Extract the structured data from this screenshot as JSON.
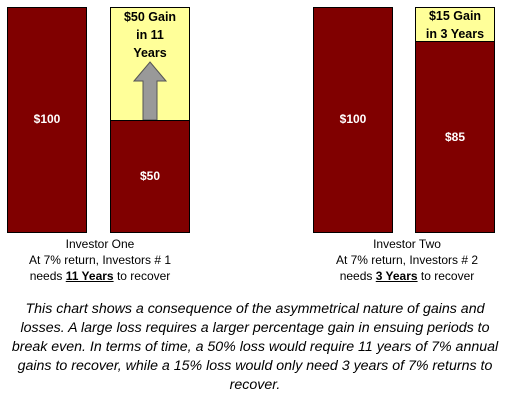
{
  "chart_data": {
    "type": "bar",
    "colors": {
      "loss_bar": "#800000",
      "gain_box": "#ffff99",
      "arrow": "#999999"
    },
    "groups": [
      {
        "name": "Investor One",
        "bars": [
          {
            "value": 100,
            "label": "$100"
          },
          {
            "value": 50,
            "label": "$50",
            "gain": 50,
            "gain_label": "$50 Gain\nin 11\nYears"
          }
        ],
        "caption_line1": "Investor One",
        "caption_line2": "At 7% return, Investors # 1",
        "caption_pre": "needs",
        "caption_bold": "11 Years",
        "caption_post": "to recover"
      },
      {
        "name": "Investor Two",
        "bars": [
          {
            "value": 100,
            "label": "$100"
          },
          {
            "value": 85,
            "label": "$85",
            "gain": 15,
            "gain_label": "$15 Gain\nin 3 Years"
          }
        ],
        "caption_line1": "Investor Two",
        "caption_line2": "At 7% return, Investors # 2",
        "caption_pre": "needs",
        "caption_bold": "3 Years",
        "caption_post": "to recover"
      }
    ],
    "ylim": [
      0,
      100
    ]
  },
  "note": "This chart shows a consequence of the asymmetrical nature of gains and losses. A large loss requires a larger percentage gain in ensuing periods to break even. In terms of time, a 50% loss would require 11 years of 7% annual gains to recover, while a 15% loss would only need 3 years of 7% returns to recover."
}
